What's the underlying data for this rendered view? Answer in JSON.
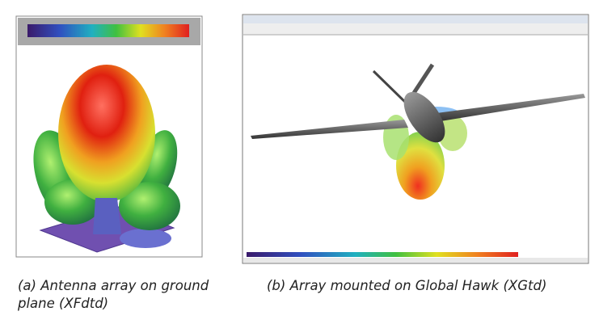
{
  "figure": {
    "panels": [
      {
        "caption": "(a) Antenna array on ground plane (XFdtd)"
      },
      {
        "caption": "(b) Array mounted on Global Hawk (XGtd)"
      }
    ]
  }
}
